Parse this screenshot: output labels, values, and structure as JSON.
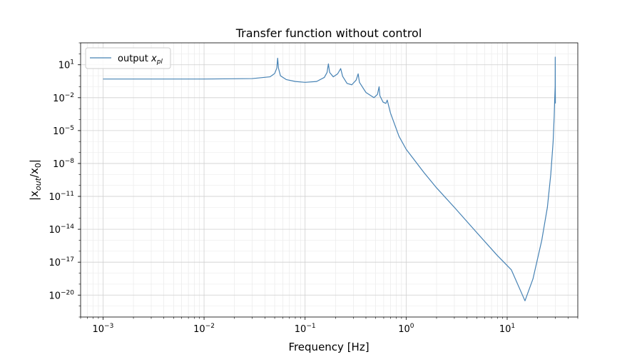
{
  "chart_data": {
    "type": "line",
    "title": "Transfer function without control",
    "xlabel": "Frequency [Hz]",
    "ylabel": "|x_out/x_0|",
    "x_scale": "log",
    "y_scale": "log",
    "xlim": [
      0.0006,
      50
    ],
    "ylim": [
      1e-22,
      1000.0
    ],
    "x_ticks": [
      {
        "value": 0.001,
        "base": "10",
        "exp": "−3"
      },
      {
        "value": 0.01,
        "base": "10",
        "exp": "−2"
      },
      {
        "value": 0.1,
        "base": "10",
        "exp": "−1"
      },
      {
        "value": 1,
        "base": "10",
        "exp": "0"
      },
      {
        "value": 10,
        "base": "10",
        "exp": "1"
      }
    ],
    "y_ticks": [
      {
        "value": 1e-20,
        "base": "10",
        "exp": "−20"
      },
      {
        "value": 1e-17,
        "base": "10",
        "exp": "−17"
      },
      {
        "value": 1e-14,
        "base": "10",
        "exp": "−14"
      },
      {
        "value": 1e-11,
        "base": "10",
        "exp": "−11"
      },
      {
        "value": 1e-08,
        "base": "10",
        "exp": "−8"
      },
      {
        "value": 1e-05,
        "base": "10",
        "exp": "−5"
      },
      {
        "value": 0.01,
        "base": "10",
        "exp": "−2"
      },
      {
        "value": 10,
        "base": "10",
        "exp": "1"
      }
    ],
    "grid": true,
    "legend_position": "top-left",
    "series": [
      {
        "name": "output x_pl",
        "color": "#4682b4",
        "points": [
          [
            0.001,
            0.5
          ],
          [
            0.01,
            0.5
          ],
          [
            0.03,
            0.55
          ],
          [
            0.045,
            0.8
          ],
          [
            0.05,
            1.6
          ],
          [
            0.0525,
            5
          ],
          [
            0.0535,
            40
          ],
          [
            0.0545,
            5
          ],
          [
            0.057,
            1.0
          ],
          [
            0.065,
            0.45
          ],
          [
            0.08,
            0.3
          ],
          [
            0.1,
            0.25
          ],
          [
            0.13,
            0.3
          ],
          [
            0.155,
            0.7
          ],
          [
            0.165,
            2
          ],
          [
            0.17,
            12
          ],
          [
            0.175,
            2
          ],
          [
            0.19,
            0.8
          ],
          [
            0.21,
            1.5
          ],
          [
            0.225,
            4.5
          ],
          [
            0.235,
            0.9
          ],
          [
            0.26,
            0.2
          ],
          [
            0.29,
            0.15
          ],
          [
            0.32,
            0.4
          ],
          [
            0.335,
            1.5
          ],
          [
            0.345,
            0.25
          ],
          [
            0.4,
            0.03
          ],
          [
            0.48,
            0.01
          ],
          [
            0.52,
            0.02
          ],
          [
            0.54,
            0.1
          ],
          [
            0.55,
            0.015
          ],
          [
            0.59,
            0.004
          ],
          [
            0.63,
            0.003
          ],
          [
            0.65,
            0.006
          ],
          [
            0.7,
            0.0004
          ],
          [
            0.85,
            3e-06
          ],
          [
            1.0,
            2e-07
          ],
          [
            1.5,
            1.5e-09
          ],
          [
            2,
            6e-11
          ],
          [
            3,
            1e-12
          ],
          [
            5,
            5e-15
          ],
          [
            8,
            4e-17
          ],
          [
            11,
            2e-18
          ],
          [
            15,
            3e-21
          ],
          [
            18,
            3e-19
          ],
          [
            22,
            1e-15
          ],
          [
            25,
            1e-12
          ],
          [
            27,
            1e-09
          ],
          [
            28.5,
            1e-06
          ],
          [
            29.2,
            0.0002
          ],
          [
            29.5,
            0.005
          ],
          [
            29.7,
            0.03
          ],
          [
            29.85,
            0.1
          ],
          [
            29.9,
            50
          ],
          [
            29.95,
            0.3
          ],
          [
            30,
            0.003
          ]
        ]
      }
    ]
  },
  "legend": {
    "items": [
      {
        "label_text": "output ",
        "label_var": "x",
        "label_sub": "pl",
        "color": "#4682b4"
      }
    ]
  }
}
